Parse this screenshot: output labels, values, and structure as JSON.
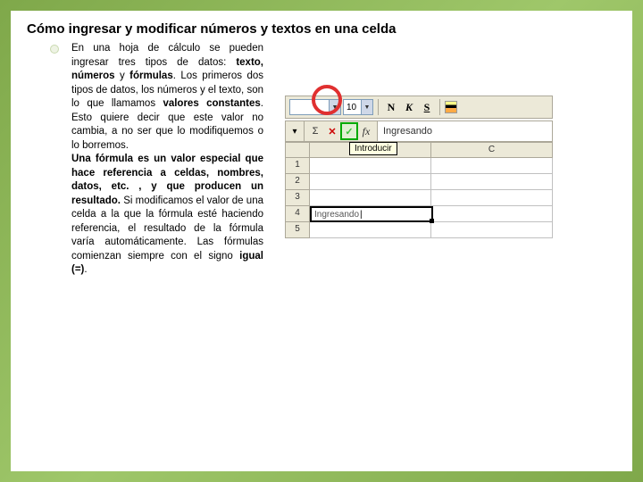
{
  "title": "Cómo ingresar y modificar números y textos en una celda",
  "paragraph": {
    "p1a": "En una hoja de cálculo se pueden ingresar tres tipos de datos: ",
    "p1b": "texto, números",
    "p1c": " y ",
    "p1d": "fórmulas",
    "p1e": ". Los primeros dos tipos de datos, los números y el texto, son lo que llamamos ",
    "p1f": "valores constantes",
    "p1g": ". Esto quiere decir que este valor no cambia, a no ser que lo modifiquemos o lo borremos.",
    "p2a": "Una fórmula es un valor especial que hace referencia a celdas, nombres, datos, etc. , y que producen un resultado.",
    "p2b": " Si modificamos el valor de una celda a la que la fórmula esté haciendo referencia, el resultado de la fórmula varía automáticamente. Las fórmulas comienzan siempre con el signo ",
    "p2c": "igual (=)",
    "p2d": "."
  },
  "toolbar": {
    "fontsize": "10",
    "btn_n": "N",
    "btn_k": "K",
    "btn_s": "S"
  },
  "formulabar": {
    "sigma": "Σ",
    "x": "✕",
    "check": "✓",
    "fx": "fx",
    "input_text": "Ingresando"
  },
  "tooltip": "Introducir",
  "grid": {
    "col_c": "C",
    "row_1": "1",
    "row_2": "2",
    "row_3": "3",
    "row_4": "4",
    "row_5": "5",
    "cell_value": "Ingresando"
  }
}
